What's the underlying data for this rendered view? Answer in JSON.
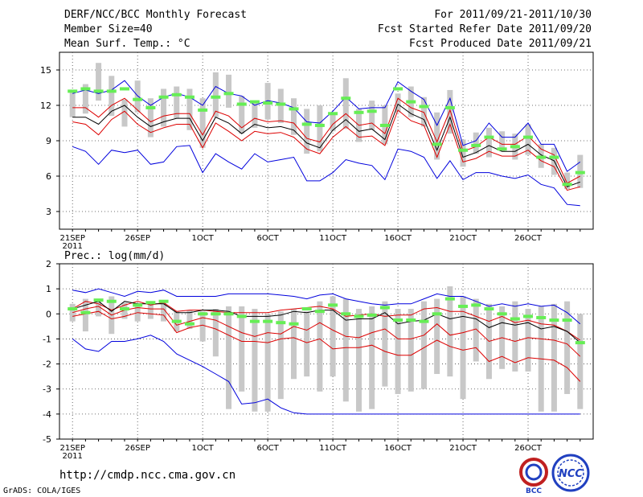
{
  "header": {
    "title": "DERF/NCC/BCC Monthly Forecast",
    "member_size": "Member Size=40",
    "period": "For 2011/09/21-2011/10/30",
    "refer_date": "Fcst Started Refer Date 2011/09/20",
    "produced_date": "Fcst Produced Date 2011/09/21"
  },
  "footer": {
    "url": "http://cmdp.ncc.cma.gov.cn",
    "grads": "GrADS: COLA/IGES",
    "logo_bcc": "BCC",
    "logo_ncc": "NCC"
  },
  "colors": {
    "max_min": "#0000dd",
    "quartile": "#dd0000",
    "median": "#000000",
    "box": "#c8c8c8",
    "bar": "#66ee55"
  },
  "chart_data": [
    {
      "type": "line",
      "title": "Mean Surf. Temp.: °C",
      "x_ticks": [
        {
          "day": 0,
          "label": "21SEP",
          "sublabel": "2011"
        },
        {
          "day": 5,
          "label": "26SEP"
        },
        {
          "day": 10,
          "label": "1OCT"
        },
        {
          "day": 15,
          "label": "6OCT"
        },
        {
          "day": 20,
          "label": "11OCT"
        },
        {
          "day": 25,
          "label": "16OCT"
        },
        {
          "day": 30,
          "label": "21OCT"
        },
        {
          "day": 35,
          "label": "26OCT"
        }
      ],
      "xlim": [
        -1,
        40
      ],
      "ylim": [
        1.5,
        16.5
      ],
      "y_ticks": [
        3,
        6,
        9,
        12,
        15
      ],
      "series": [
        {
          "name": "max",
          "values": [
            13.0,
            13.3,
            13.0,
            13.3,
            14.1,
            12.8,
            12.0,
            12.7,
            13.0,
            12.7,
            12.0,
            13.6,
            13.0,
            12.8,
            12.0,
            12.4,
            12.2,
            11.8,
            10.6,
            10.5,
            11.5,
            12.7,
            11.7,
            11.8,
            11.8,
            14.0,
            13.2,
            12.5,
            10.3,
            12.6,
            8.6,
            9.0,
            10.5,
            9.3,
            9.3,
            10.5,
            8.7,
            8.7,
            6.4,
            7.2
          ]
        },
        {
          "name": "q3",
          "values": [
            11.8,
            11.8,
            11.0,
            12.0,
            12.6,
            11.6,
            10.6,
            11.1,
            11.3,
            11.3,
            9.5,
            11.5,
            11.1,
            10.1,
            10.9,
            10.6,
            10.7,
            10.5,
            9.2,
            8.9,
            10.4,
            11.3,
            10.3,
            10.5,
            9.6,
            12.6,
            11.8,
            11.4,
            8.9,
            11.6,
            8.1,
            8.5,
            9.3,
            8.7,
            8.7,
            9.4,
            8.3,
            7.8,
            5.4,
            6.0
          ]
        },
        {
          "name": "median",
          "values": [
            11.0,
            11.0,
            10.4,
            11.5,
            12.0,
            11.0,
            10.2,
            10.6,
            10.9,
            10.9,
            9.0,
            11.0,
            10.5,
            9.6,
            10.4,
            10.1,
            10.2,
            9.9,
            8.8,
            8.4,
            9.9,
            10.8,
            9.8,
            10.0,
            9.1,
            12.1,
            11.3,
            10.8,
            8.2,
            11.0,
            7.6,
            8.0,
            8.6,
            8.1,
            8.1,
            8.7,
            7.8,
            7.3,
            5.1,
            5.5
          ]
        },
        {
          "name": "q1",
          "values": [
            10.6,
            10.4,
            9.5,
            10.8,
            11.5,
            10.4,
            9.7,
            10.1,
            10.4,
            10.4,
            8.4,
            10.5,
            9.8,
            9.0,
            9.8,
            9.6,
            9.7,
            9.3,
            8.3,
            7.9,
            9.3,
            10.2,
            9.3,
            9.4,
            8.6,
            11.6,
            10.7,
            10.3,
            7.6,
            10.4,
            7.2,
            7.5,
            8.1,
            7.7,
            7.7,
            8.2,
            7.3,
            6.8,
            4.8,
            5.1
          ]
        },
        {
          "name": "min",
          "values": [
            8.5,
            8.1,
            7.0,
            8.2,
            8.0,
            8.2,
            7.0,
            7.2,
            8.5,
            8.6,
            6.3,
            7.9,
            7.2,
            6.6,
            7.9,
            7.2,
            7.4,
            7.6,
            5.6,
            5.6,
            6.3,
            7.4,
            7.1,
            6.9,
            5.7,
            8.3,
            8.1,
            7.6,
            5.8,
            7.3,
            5.7,
            6.3,
            6.3,
            6.0,
            5.8,
            6.1,
            5.3,
            5.0,
            3.6,
            3.5
          ]
        },
        {
          "name": "box_high",
          "values": [
            13.3,
            13.8,
            15.6,
            14.5,
            12.5,
            14.1,
            12.6,
            13.4,
            13.6,
            13.4,
            12.6,
            14.8,
            14.6,
            12.8,
            12.4,
            13.9,
            13.4,
            12.6,
            11.7,
            12.0,
            11.4,
            14.3,
            11.7,
            12.4,
            12.0,
            13.0,
            13.6,
            12.7,
            11.4,
            13.3,
            9.1,
            9.7,
            10.1,
            9.8,
            9.6,
            10.4,
            8.7,
            8.4,
            6.3,
            7.8
          ]
        },
        {
          "name": "box_low",
          "values": [
            11.0,
            11.3,
            12.4,
            11.1,
            10.2,
            11.4,
            9.3,
            10.2,
            10.9,
            9.9,
            8.4,
            11.0,
            11.8,
            9.6,
            10.1,
            10.8,
            10.5,
            9.5,
            7.9,
            8.1,
            9.8,
            10.0,
            8.9,
            9.9,
            8.7,
            11.4,
            11.0,
            10.2,
            7.4,
            9.6,
            6.8,
            7.9,
            7.6,
            8.1,
            7.4,
            7.8,
            6.7,
            6.1,
            4.9,
            5.0
          ]
        },
        {
          "name": "ensemble_mean_bar",
          "values": [
            13.2,
            13.4,
            13.2,
            13.2,
            13.4,
            12.5,
            11.8,
            12.7,
            12.9,
            12.7,
            11.6,
            12.7,
            13.0,
            12.1,
            12.3,
            12.2,
            12.1,
            11.7,
            10.4,
            10.3,
            11.3,
            12.6,
            11.4,
            11.5,
            10.3,
            13.4,
            12.3,
            11.9,
            8.7,
            11.8,
            8.2,
            8.6,
            9.3,
            8.3,
            8.5,
            9.3,
            7.6,
            7.6,
            5.3,
            6.3
          ]
        }
      ]
    },
    {
      "type": "line",
      "title": "Prec.: log(mm/d)",
      "x_ticks": [
        {
          "day": 0,
          "label": "21SEP",
          "sublabel": "2011"
        },
        {
          "day": 5,
          "label": "26SEP"
        },
        {
          "day": 10,
          "label": "1OCT"
        },
        {
          "day": 15,
          "label": "6OCT"
        },
        {
          "day": 20,
          "label": "11OCT"
        },
        {
          "day": 25,
          "label": "16OCT"
        },
        {
          "day": 30,
          "label": "21OCT"
        },
        {
          "day": 35,
          "label": "26OCT"
        }
      ],
      "xlim": [
        -1,
        40
      ],
      "ylim": [
        -5,
        2
      ],
      "y_ticks": [
        -5,
        -4,
        -3,
        -2,
        -1,
        0,
        1,
        2
      ],
      "series": [
        {
          "name": "max",
          "values": [
            0.95,
            0.85,
            1.0,
            0.85,
            0.7,
            0.9,
            0.85,
            0.95,
            0.7,
            0.7,
            0.7,
            0.7,
            0.8,
            0.8,
            0.8,
            0.8,
            0.75,
            0.7,
            0.6,
            0.75,
            0.8,
            0.6,
            0.5,
            0.4,
            0.35,
            0.4,
            0.4,
            0.6,
            0.8,
            0.7,
            0.7,
            0.5,
            0.3,
            0.4,
            0.3,
            0.4,
            0.3,
            0.35,
            0.05,
            -0.4
          ]
        },
        {
          "name": "q3",
          "values": [
            0.2,
            0.5,
            0.4,
            0.15,
            0.35,
            0.5,
            0.35,
            0.45,
            0.1,
            0.15,
            0.15,
            0.1,
            0.05,
            0.05,
            0.05,
            0.05,
            0.15,
            0.2,
            0.25,
            0.3,
            0.2,
            -0.1,
            -0.05,
            0.0,
            -0.1,
            -0.05,
            -0.05,
            0.2,
            0.25,
            0.1,
            0.1,
            -0.1,
            -0.3,
            -0.1,
            -0.35,
            -0.25,
            -0.4,
            -0.45,
            -0.7,
            -1.05
          ]
        },
        {
          "name": "median",
          "values": [
            0.2,
            0.35,
            0.5,
            0.1,
            0.5,
            0.4,
            0.4,
            0.4,
            0.05,
            0.05,
            0.15,
            0.15,
            0.1,
            -0.1,
            -0.1,
            -0.1,
            -0.05,
            0.1,
            0.05,
            0.15,
            0.15,
            -0.25,
            -0.2,
            -0.2,
            0.05,
            -0.4,
            -0.3,
            -0.25,
            0.0,
            -0.2,
            -0.1,
            -0.2,
            -0.55,
            -0.35,
            -0.45,
            -0.35,
            -0.6,
            -0.5,
            -0.7,
            -1.15
          ]
        },
        {
          "name": "q1",
          "values": [
            0.05,
            0.2,
            0.3,
            -0.05,
            0.15,
            0.25,
            0.2,
            0.2,
            -0.45,
            -0.3,
            -0.15,
            -0.25,
            -0.5,
            -0.75,
            -0.9,
            -0.75,
            -0.8,
            -0.5,
            -0.65,
            -0.35,
            -0.65,
            -0.9,
            -0.95,
            -0.75,
            -0.6,
            -1.0,
            -1.0,
            -0.85,
            -0.4,
            -0.85,
            -0.75,
            -0.6,
            -1.1,
            -0.95,
            -1.1,
            -0.95,
            -1.0,
            -1.05,
            -1.2,
            -1.7
          ]
        },
        {
          "name": "q1b",
          "values": [
            -0.1,
            0.0,
            0.1,
            -0.2,
            -0.1,
            0.05,
            0.0,
            -0.05,
            -0.75,
            -0.55,
            -0.45,
            -0.6,
            -0.85,
            -1.1,
            -1.1,
            -1.15,
            -1.0,
            -0.95,
            -1.15,
            -1.0,
            -1.4,
            -1.35,
            -1.35,
            -1.25,
            -1.5,
            -1.65,
            -1.65,
            -1.35,
            -1.05,
            -1.3,
            -1.45,
            -1.35,
            -1.9,
            -1.7,
            -1.95,
            -1.75,
            -1.8,
            -1.85,
            -2.15,
            -2.7
          ]
        },
        {
          "name": "min",
          "values": [
            -1.0,
            -1.4,
            -1.5,
            -1.1,
            -1.1,
            -1.0,
            -0.85,
            -1.1,
            -1.6,
            -1.85,
            -2.1,
            -2.4,
            -2.7,
            -3.6,
            -3.55,
            -3.4,
            -3.75,
            -3.95,
            -4.0,
            -4.0,
            -4.0,
            -4.0,
            -4.0,
            -4.0,
            -4.0,
            -4.0,
            -4.0,
            -4.0,
            -4.0,
            -4.0,
            -4.0,
            -4.0,
            -4.0,
            -4.0,
            -4.0,
            -4.0,
            -4.0,
            -4.0,
            -4.0,
            -4.0
          ]
        },
        {
          "name": "box_high",
          "values": [
            0.4,
            0.6,
            0.5,
            0.7,
            0.45,
            0.4,
            0.5,
            0.55,
            0.1,
            0.15,
            0.1,
            0.2,
            0.3,
            0.3,
            0.2,
            0.0,
            0.1,
            0.2,
            0.1,
            0.5,
            0.7,
            0.6,
            0.2,
            0.3,
            0.5,
            0.2,
            0.2,
            0.5,
            0.6,
            1.1,
            0.7,
            0.6,
            0.4,
            0.3,
            0.5,
            0.2,
            0.3,
            0.4,
            0.5,
            0.0
          ]
        },
        {
          "name": "box_low",
          "values": [
            -0.3,
            -0.7,
            -0.1,
            -0.8,
            -0.2,
            -0.3,
            -0.2,
            -0.3,
            -0.7,
            -0.6,
            -1.1,
            -1.7,
            -3.8,
            -3.1,
            -3.9,
            -3.9,
            -3.4,
            -2.6,
            -2.5,
            -3.1,
            -2.5,
            -3.5,
            -3.9,
            -3.8,
            -2.9,
            -3.2,
            -3.1,
            -3.0,
            -2.4,
            -2.5,
            -3.4,
            -1.9,
            -2.6,
            -2.2,
            -2.3,
            -2.3,
            -3.9,
            -3.9,
            -3.2,
            -3.8
          ]
        },
        {
          "name": "ensemble_mean_bar",
          "values": [
            0.2,
            0.05,
            0.55,
            0.5,
            0.2,
            0.35,
            0.45,
            0.5,
            -0.3,
            -0.4,
            0.0,
            0.0,
            0.0,
            -0.1,
            -0.3,
            -0.3,
            -0.35,
            -0.4,
            0.2,
            0.1,
            0.35,
            0.0,
            -0.1,
            -0.05,
            0.25,
            -0.25,
            -0.25,
            -0.3,
            0.0,
            0.6,
            0.3,
            0.35,
            0.2,
            0.0,
            -0.2,
            -0.1,
            -0.15,
            -0.25,
            -0.25,
            -1.15
          ]
        }
      ]
    }
  ]
}
